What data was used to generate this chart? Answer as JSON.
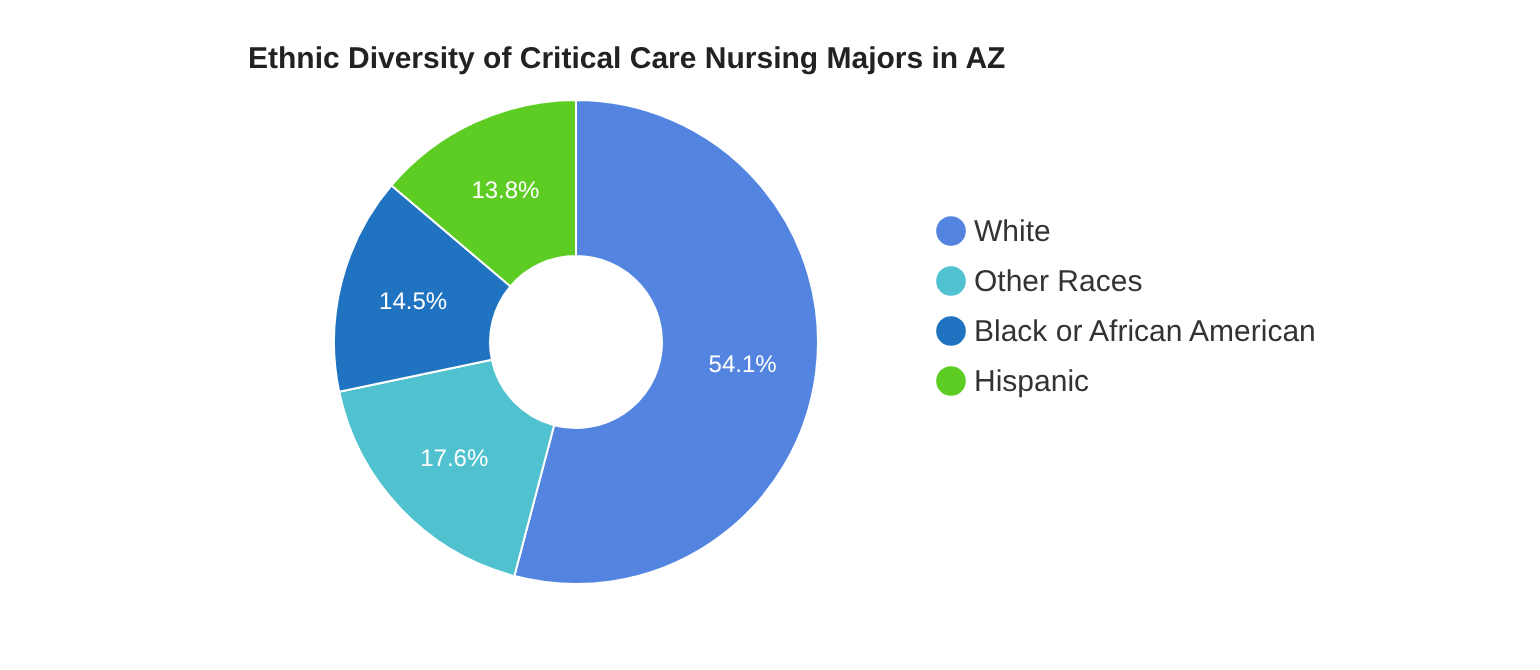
{
  "chart_data": {
    "type": "donut",
    "title": "Ethnic Diversity of Critical Care Nursing Majors in AZ",
    "categories": [
      "White",
      "Other Races",
      "Black or African American",
      "Hispanic"
    ],
    "values": [
      54.1,
      17.6,
      14.5,
      13.8
    ],
    "colors": [
      "#5284e0",
      "#4fc1cf",
      "#1f73c0",
      "#5dcd24"
    ],
    "value_labels": [
      "54.1%",
      "17.6%",
      "14.5%",
      "13.8%"
    ],
    "legend": "right"
  }
}
